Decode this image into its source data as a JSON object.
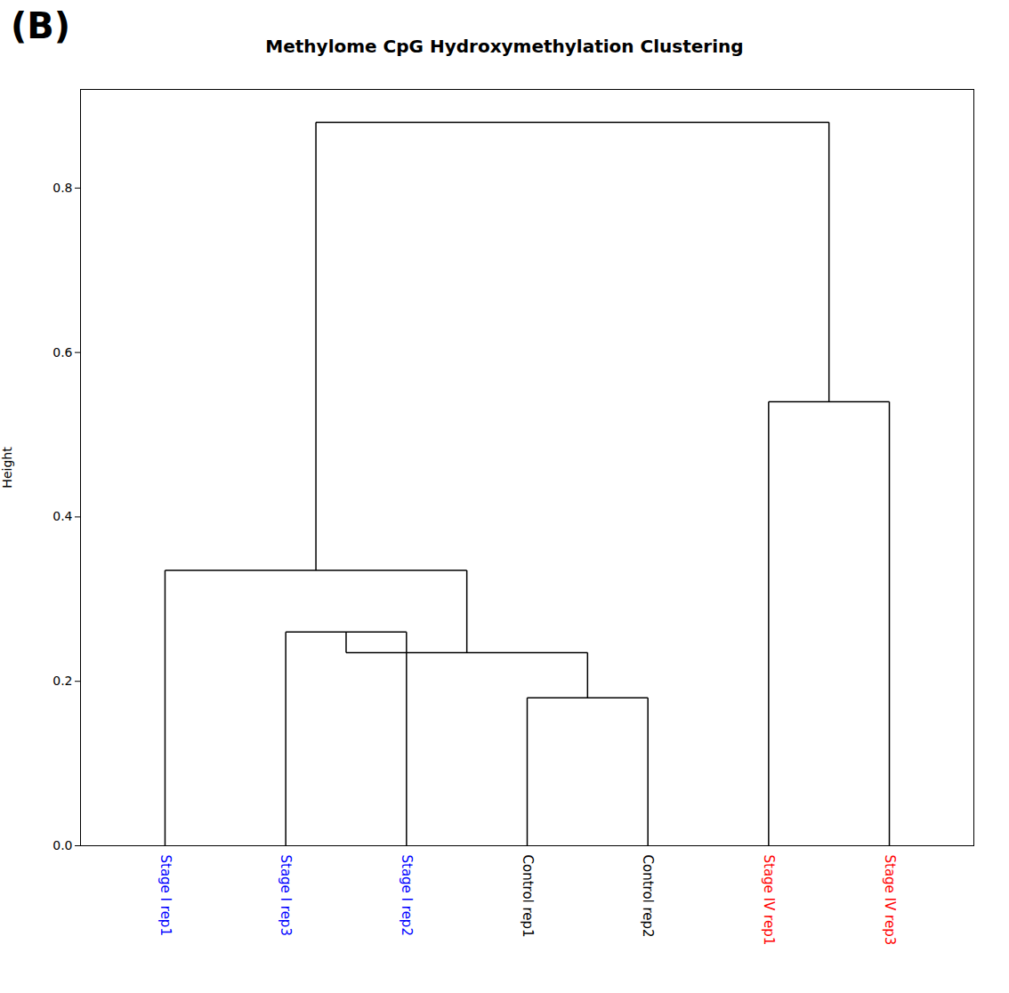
{
  "chart_data": {
    "type": "dendrogram",
    "title": "Methylome CpG Hydroxymethylation Clustering",
    "panel_label": "(B)",
    "ylabel": "Height",
    "ylim": [
      0.0,
      0.92
    ],
    "yticks": [
      {
        "value": 0.0,
        "label": "0.0"
      },
      0.2,
      0.4,
      0.6,
      0.8
    ],
    "categories": [
      "Stage I rep1",
      "Stage I rep3",
      "Stage I rep2",
      "Control rep1",
      "Control rep2",
      "Stage IV rep1",
      "Stage IV rep3"
    ],
    "colors": [
      "#0000FF",
      "#0000FF",
      "#0000FF",
      "#000000",
      "#000000",
      "#FF0000",
      "#FF0000"
    ],
    "color": "#000000",
    "grid": false,
    "tree": {
      "height": 0.88,
      "children": [
        {
          "height": 0.335,
          "children": [
            "Stage I rep1",
            {
              "height": 0.235,
              "children": [
                {
                  "height": 0.26,
                  "children": [
                    "Stage I rep3",
                    "Stage I rep2"
                  ]
                },
                {
                  "height": 0.18,
                  "children": [
                    "Control rep1",
                    "Control rep2"
                  ]
                }
              ]
            }
          ]
        },
        {
          "height": 0.54,
          "children": [
            "Stage IV rep1",
            "Stage IV rep3"
          ]
        }
      ]
    }
  }
}
